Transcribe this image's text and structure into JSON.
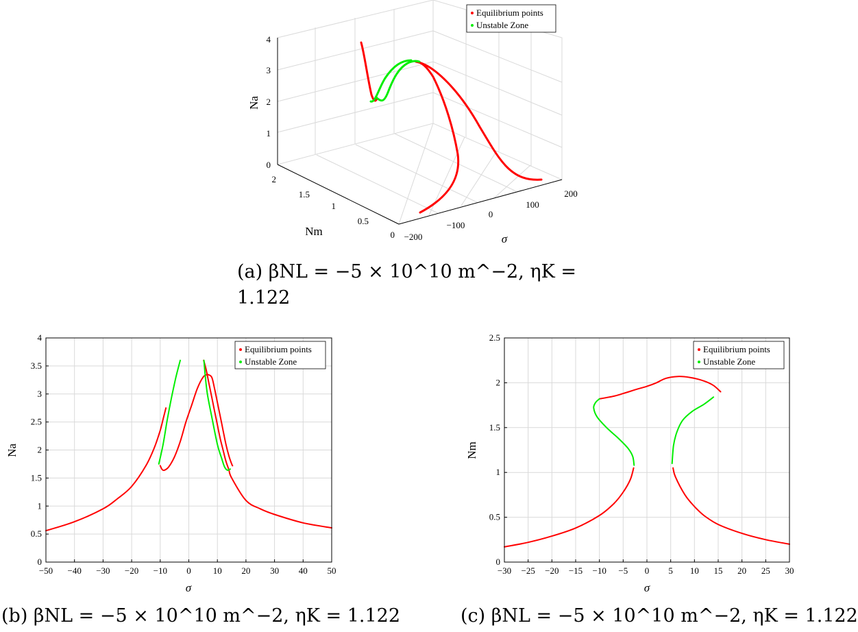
{
  "colors": {
    "equilibrium": "#ff0000",
    "unstable": "#00ee00",
    "grid": "#d9d9d9",
    "axis": "#000000"
  },
  "captions": {
    "a_line1": "(a) βNL = −5 × 10^10 m^−2, ηK =",
    "a_line2": "1.122",
    "b": "(b) βNL = −5 × 10^10 m^−2, ηK = 1.122",
    "c": "(c) βNL = −5 × 10^10 m^−2, ηK = 1.122"
  },
  "chart_data": [
    {
      "id": "a",
      "type": "line",
      "projection": "3d",
      "title": "",
      "xlabel": "σ",
      "ylabel": "Nm",
      "zlabel": "Na",
      "xlim": [
        -200,
        200
      ],
      "ylim": [
        0,
        2
      ],
      "zlim": [
        0,
        4
      ],
      "xticks": [
        "−200",
        "−100",
        "0",
        "100",
        "200"
      ],
      "yticks": [
        "0",
        "0.5",
        "1",
        "1.5",
        "2"
      ],
      "zticks": [
        "0",
        "1",
        "2",
        "3",
        "4"
      ],
      "grid": true,
      "legend": {
        "position": "top-right",
        "entries": [
          "Equilibrium points",
          "Unstable Zone"
        ]
      },
      "series": [
        {
          "name": "Equilibrium points",
          "x": [
            -150,
            -100,
            -50,
            -20,
            -5
          ],
          "y": [
            0.3,
            0.55,
            0.9,
            1.1,
            1.15
          ],
          "z": [
            0.75,
            1.0,
            1.5,
            2.2,
            2.9
          ]
        },
        {
          "name": "Equilibrium points",
          "x": [
            5,
            15,
            40,
            80,
            150
          ],
          "y": [
            1.1,
            1.05,
            0.7,
            0.45,
            0.3
          ],
          "z": [
            3.2,
            2.8,
            1.6,
            1.1,
            0.75
          ]
        },
        {
          "name": "Unstable Zone",
          "x": [
            -10,
            -9,
            -5,
            0,
            5
          ],
          "y": [
            1.72,
            1.65,
            1.4,
            1.3,
            1.3
          ],
          "z": [
            1.75,
            1.63,
            2.5,
            3.3,
            3.6
          ]
        }
      ]
    },
    {
      "id": "b",
      "type": "line",
      "title": "",
      "xlabel": "σ",
      "ylabel": "Na",
      "xlim": [
        -50,
        50
      ],
      "ylim": [
        0,
        4
      ],
      "xticks": [
        -50,
        -40,
        -30,
        -20,
        -10,
        0,
        10,
        20,
        30,
        40,
        50
      ],
      "yticks": [
        0,
        0.5,
        1,
        1.5,
        2,
        2.5,
        3,
        3.5,
        4
      ],
      "grid": true,
      "legend": {
        "position": "top-right",
        "entries": [
          "Equilibrium points",
          "Unstable Zone"
        ]
      },
      "series": [
        {
          "name": "Equilibrium points",
          "x": [
            -50,
            -40,
            -30,
            -25,
            -20,
            -15,
            -12,
            -10,
            -9,
            -8
          ],
          "y": [
            0.56,
            0.72,
            0.95,
            1.13,
            1.35,
            1.72,
            2.05,
            2.35,
            2.55,
            2.75
          ]
        },
        {
          "name": "Equilibrium points",
          "x": [
            -10,
            -9.3,
            -8.5,
            -7,
            -5,
            -3,
            -1,
            1,
            3,
            5,
            6.5
          ],
          "y": [
            1.72,
            1.65,
            1.64,
            1.7,
            1.88,
            2.15,
            2.5,
            2.8,
            3.1,
            3.3,
            3.35
          ]
        },
        {
          "name": "Equilibrium points",
          "x": [
            6.5,
            8,
            9,
            10,
            11,
            12,
            13,
            14,
            15,
            15.3
          ],
          "y": [
            3.35,
            3.3,
            3.1,
            2.85,
            2.6,
            2.35,
            2.1,
            1.9,
            1.75,
            1.72
          ]
        },
        {
          "name": "Equilibrium points",
          "x": [
            5.2,
            6,
            7,
            8,
            9,
            10,
            11,
            12,
            13,
            14,
            15,
            20,
            25,
            30,
            40,
            50
          ],
          "y": [
            3.6,
            3.45,
            3.2,
            2.95,
            2.7,
            2.45,
            2.2,
            2.0,
            1.8,
            1.65,
            1.5,
            1.1,
            0.95,
            0.85,
            0.7,
            0.61
          ]
        },
        {
          "name": "Unstable Zone",
          "x": [
            -10.5,
            -9,
            -7.5,
            -6,
            -4.5,
            -3
          ],
          "y": [
            1.75,
            2.1,
            2.55,
            2.95,
            3.3,
            3.6
          ]
        },
        {
          "name": "Unstable Zone",
          "x": [
            5.3,
            5.8,
            6.5,
            8,
            10,
            11.5,
            12.5,
            13.5,
            14.5
          ],
          "y": [
            3.6,
            3.3,
            3.0,
            2.6,
            2.1,
            1.85,
            1.7,
            1.64,
            1.66
          ]
        }
      ]
    },
    {
      "id": "c",
      "type": "line",
      "title": "",
      "xlabel": "σ",
      "ylabel": "Nm",
      "xlim": [
        -30,
        30
      ],
      "ylim": [
        0,
        2.5
      ],
      "xticks": [
        -30,
        -25,
        -20,
        -15,
        -10,
        -5,
        0,
        5,
        10,
        15,
        20,
        25,
        30
      ],
      "yticks": [
        0,
        0.5,
        1,
        1.5,
        2,
        2.5
      ],
      "grid": true,
      "legend": {
        "position": "top-right",
        "entries": [
          "Equilibrium points",
          "Unstable Zone"
        ]
      },
      "series": [
        {
          "name": "Equilibrium points",
          "x": [
            -30,
            -25,
            -20,
            -15,
            -10,
            -7,
            -5,
            -3.5,
            -2.8
          ],
          "y": [
            0.17,
            0.22,
            0.29,
            0.38,
            0.52,
            0.65,
            0.78,
            0.92,
            1.05
          ]
        },
        {
          "name": "Equilibrium points",
          "x": [
            -10,
            -7,
            -5,
            -2,
            0,
            2,
            4,
            6.5,
            9,
            12,
            14,
            15.5
          ],
          "y": [
            1.82,
            1.85,
            1.88,
            1.93,
            1.96,
            2.0,
            2.05,
            2.07,
            2.06,
            2.02,
            1.97,
            1.9
          ]
        },
        {
          "name": "Equilibrium points",
          "x": [
            5.5,
            6,
            8,
            10,
            12,
            15,
            20,
            25,
            30
          ],
          "y": [
            1.05,
            0.95,
            0.75,
            0.62,
            0.52,
            0.42,
            0.32,
            0.25,
            0.2
          ]
        },
        {
          "name": "Unstable Zone",
          "x": [
            -10,
            -10.8,
            -11.2,
            -10.5,
            -8.5,
            -6,
            -4,
            -3,
            -2.7
          ],
          "y": [
            1.82,
            1.78,
            1.72,
            1.62,
            1.5,
            1.38,
            1.27,
            1.18,
            1.08
          ]
        },
        {
          "name": "Unstable Zone",
          "x": [
            5.3,
            5.6,
            6.3,
            7.5,
            9.5,
            12,
            14
          ],
          "y": [
            1.1,
            1.3,
            1.45,
            1.58,
            1.68,
            1.76,
            1.84
          ]
        }
      ]
    }
  ]
}
